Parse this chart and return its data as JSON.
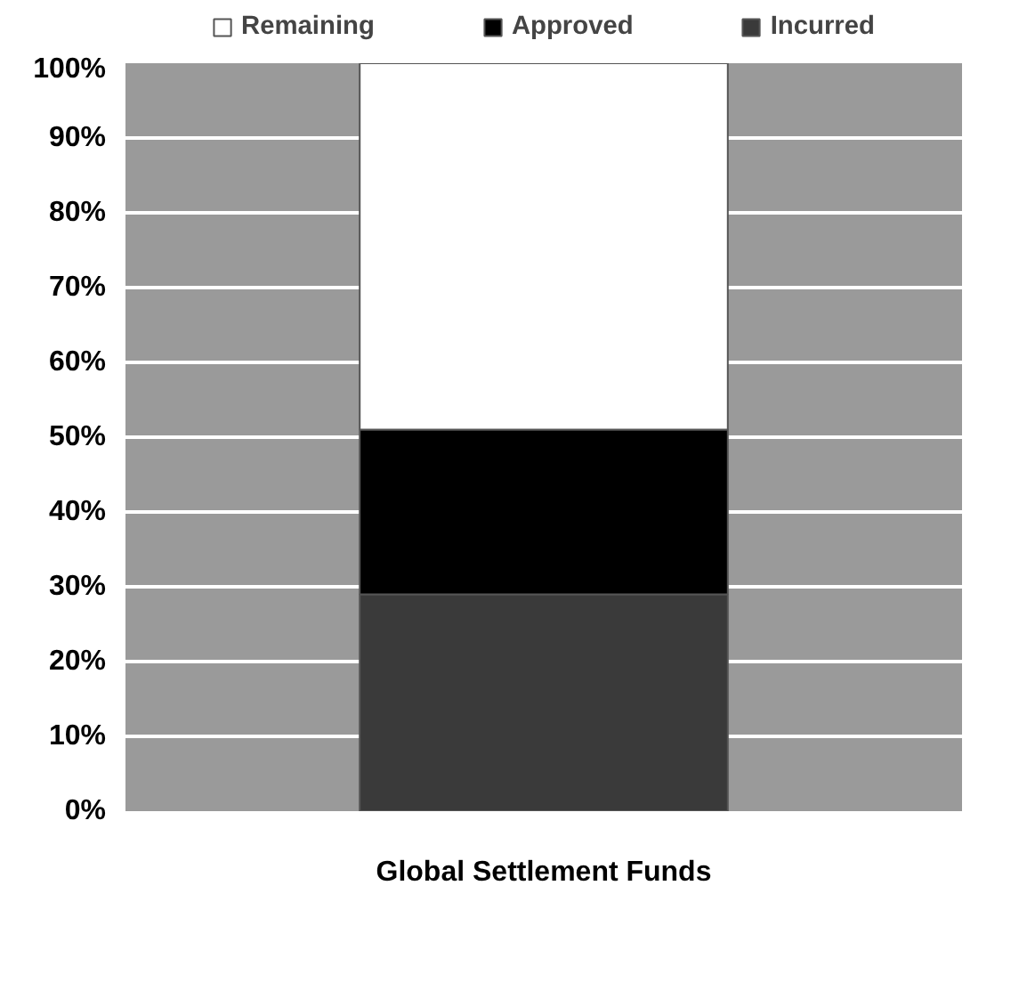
{
  "chart_data": {
    "type": "bar",
    "stacked": true,
    "categories": [
      "Global Settlement Funds"
    ],
    "series": [
      {
        "name": "Incurred",
        "color": "#3a3a3a",
        "values": [
          29
        ]
      },
      {
        "name": "Approved",
        "color": "#000000",
        "values": [
          22
        ]
      },
      {
        "name": "Remaining",
        "color": "#ffffff",
        "values": [
          49
        ]
      }
    ],
    "ylim": [
      0,
      100
    ],
    "yticks": [
      {
        "value": 0,
        "label": "0%"
      },
      {
        "value": 10,
        "label": "10%"
      },
      {
        "value": 20,
        "label": "20%"
      },
      {
        "value": 30,
        "label": "30%"
      },
      {
        "value": 40,
        "label": "40%"
      },
      {
        "value": 50,
        "label": "50%"
      },
      {
        "value": 60,
        "label": "60%"
      },
      {
        "value": 70,
        "label": "70%"
      },
      {
        "value": 80,
        "label": "80%"
      },
      {
        "value": 90,
        "label": "90%"
      },
      {
        "value": 100,
        "label": "100%"
      }
    ],
    "grid": "y",
    "legend": "top"
  }
}
